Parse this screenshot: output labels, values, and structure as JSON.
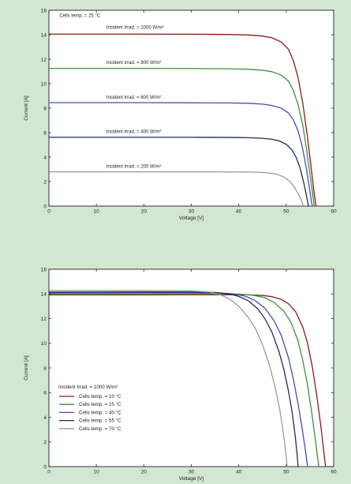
{
  "colors": {
    "background": "#d3e6d2",
    "plot_area": "#ffffff",
    "dark_red": "#8b1a1a",
    "green": "#3f8f3f",
    "blue": "#4a4ab8",
    "dark_navy": "#1e2a5c",
    "gray": "#9a9a9a"
  },
  "chart_data": [
    {
      "type": "line",
      "title": "",
      "xlabel": "Voltage  [V]",
      "ylabel": "Current        [A]",
      "xlim": [
        0,
        60
      ],
      "ylim": [
        0,
        16
      ],
      "xticks": [
        0,
        10,
        20,
        30,
        40,
        50,
        60
      ],
      "yticks": [
        0,
        2,
        4,
        6,
        8,
        10,
        12,
        14,
        16
      ],
      "grid": false,
      "annotations": [
        {
          "text": "Cells temp. = 25 °C",
          "x": 2.2,
          "y": 15.45
        }
      ],
      "series": [
        {
          "name": "Incident Irrad. = 1000 W/m²",
          "color": "#8b1a1a",
          "label_pos": [
            12.1,
            14.5
          ],
          "points": [
            [
              0,
              14.05
            ],
            [
              10,
              14.05
            ],
            [
              20,
              14.05
            ],
            [
              30,
              14.04
            ],
            [
              38,
              14.02
            ],
            [
              42,
              13.98
            ],
            [
              45,
              13.9
            ],
            [
              47,
              13.75
            ],
            [
              49,
              13.4
            ],
            [
              50.5,
              12.8
            ],
            [
              51.5,
              11.9
            ],
            [
              52.5,
              10.5
            ],
            [
              53.5,
              8.4
            ],
            [
              54.5,
              5.6
            ],
            [
              55.3,
              3.0
            ],
            [
              55.9,
              1.0
            ],
            [
              56.3,
              0
            ]
          ]
        },
        {
          "name": "Incident Irrad. = 800 W/m²",
          "color": "#3f8f3f",
          "label_pos": [
            12.1,
            11.6
          ],
          "points": [
            [
              0,
              11.25
            ],
            [
              10,
              11.25
            ],
            [
              20,
              11.25
            ],
            [
              30,
              11.24
            ],
            [
              38,
              11.22
            ],
            [
              42,
              11.18
            ],
            [
              45,
              11.1
            ],
            [
              47,
              10.98
            ],
            [
              49,
              10.7
            ],
            [
              50.5,
              10.2
            ],
            [
              51.5,
              9.45
            ],
            [
              52.5,
              8.3
            ],
            [
              53.5,
              6.6
            ],
            [
              54.3,
              4.6
            ],
            [
              55,
              2.6
            ],
            [
              55.6,
              0.9
            ],
            [
              55.9,
              0
            ]
          ]
        },
        {
          "name": "Incident Irrad. = 600 W/m²",
          "color": "#4a4ab8",
          "label_pos": [
            12.1,
            8.78
          ],
          "points": [
            [
              0,
              8.45
            ],
            [
              10,
              8.45
            ],
            [
              20,
              8.45
            ],
            [
              30,
              8.44
            ],
            [
              38,
              8.43
            ],
            [
              42,
              8.4
            ],
            [
              45,
              8.33
            ],
            [
              47,
              8.22
            ],
            [
              49,
              8.0
            ],
            [
              50.5,
              7.6
            ],
            [
              51.5,
              7.05
            ],
            [
              52.5,
              6.15
            ],
            [
              53.3,
              5.0
            ],
            [
              54.1,
              3.4
            ],
            [
              54.8,
              1.7
            ],
            [
              55.3,
              0.4
            ],
            [
              55.5,
              0
            ]
          ]
        },
        {
          "name": "Incident Irrad. = 400 W/m²",
          "color": "#1e2a5c",
          "label_pos": [
            12.1,
            5.98
          ],
          "points": [
            [
              0,
              5.62
            ],
            [
              10,
              5.62
            ],
            [
              20,
              5.62
            ],
            [
              30,
              5.62
            ],
            [
              38,
              5.61
            ],
            [
              42,
              5.59
            ],
            [
              45,
              5.54
            ],
            [
              47,
              5.46
            ],
            [
              48.5,
              5.33
            ],
            [
              50,
              5.05
            ],
            [
              51.2,
              4.6
            ],
            [
              52.2,
              3.9
            ],
            [
              53,
              3.0
            ],
            [
              53.7,
              1.9
            ],
            [
              54.3,
              0.8
            ],
            [
              54.7,
              0
            ]
          ]
        },
        {
          "name": "Incident Irrad. = 200 W/m²",
          "color": "#9a9a9a",
          "label_pos": [
            12.1,
            3.14
          ],
          "points": [
            [
              0,
              2.8
            ],
            [
              10,
              2.8
            ],
            [
              20,
              2.8
            ],
            [
              30,
              2.8
            ],
            [
              38,
              2.79
            ],
            [
              42,
              2.78
            ],
            [
              44.5,
              2.76
            ],
            [
              46.5,
              2.7
            ],
            [
              48,
              2.6
            ],
            [
              49.5,
              2.38
            ],
            [
              50.8,
              2.0
            ],
            [
              51.8,
              1.5
            ],
            [
              52.7,
              0.9
            ],
            [
              53.3,
              0.35
            ],
            [
              53.6,
              0
            ]
          ]
        }
      ]
    },
    {
      "type": "line",
      "title": "",
      "xlabel": "Voltage  [V]",
      "ylabel": "Current        [A]",
      "xlim": [
        0,
        60
      ],
      "ylim": [
        0,
        16
      ],
      "xticks": [
        0,
        10,
        20,
        30,
        40,
        50,
        60
      ],
      "yticks": [
        0,
        2,
        4,
        6,
        8,
        10,
        12,
        14,
        16
      ],
      "grid": false,
      "legend": {
        "title": "Incident Irrad. = 1000 W/m²",
        "position": "lower-left"
      },
      "series": [
        {
          "name": "Cells temp. = 10 °C",
          "color": "#8b1a1a",
          "points": [
            [
              0,
              13.92
            ],
            [
              10,
              13.92
            ],
            [
              20,
              13.92
            ],
            [
              30,
              13.93
            ],
            [
              38,
              13.93
            ],
            [
              42,
              13.93
            ],
            [
              45,
              13.88
            ],
            [
              47,
              13.78
            ],
            [
              49,
              13.55
            ],
            [
              50.5,
              13.2
            ],
            [
              52,
              12.55
            ],
            [
              53.5,
              11.3
            ],
            [
              54.5,
              10.0
            ],
            [
              55.5,
              8.1
            ],
            [
              56.5,
              5.6
            ],
            [
              57.3,
              3.3
            ],
            [
              57.9,
              1.3
            ],
            [
              58.3,
              0
            ]
          ]
        },
        {
          "name": "Cells temp. = 25 °C",
          "color": "#3f8f3f",
          "points": [
            [
              0,
              14.0
            ],
            [
              10,
              14.0
            ],
            [
              20,
              14.0
            ],
            [
              30,
              14.02
            ],
            [
              36,
              14.02
            ],
            [
              40,
              13.98
            ],
            [
              43,
              13.9
            ],
            [
              45.5,
              13.7
            ],
            [
              47.5,
              13.3
            ],
            [
              49.5,
              12.6
            ],
            [
              51,
              11.7
            ],
            [
              52.5,
              10.2
            ],
            [
              53.5,
              8.6
            ],
            [
              54.5,
              6.6
            ],
            [
              55.3,
              4.6
            ],
            [
              56,
              2.6
            ],
            [
              56.6,
              0.8
            ],
            [
              56.9,
              0
            ]
          ]
        },
        {
          "name": "Cells temp. = 40 °C",
          "color": "#4a4ab8",
          "points": [
            [
              0,
              14.08
            ],
            [
              10,
              14.08
            ],
            [
              20,
              14.1
            ],
            [
              30,
              14.1
            ],
            [
              36,
              14.08
            ],
            [
              39,
              14.0
            ],
            [
              41.5,
              13.8
            ],
            [
              43.5,
              13.45
            ],
            [
              45.5,
              12.85
            ],
            [
              47.5,
              11.8
            ],
            [
              49,
              10.6
            ],
            [
              50.5,
              8.8
            ],
            [
              51.5,
              7.1
            ],
            [
              52.5,
              5.1
            ],
            [
              53.4,
              3.0
            ],
            [
              54.1,
              1.2
            ],
            [
              54.5,
              0
            ]
          ]
        },
        {
          "name": "Cells temp. = 55 °C",
          "color": "#1e2a5c",
          "points": [
            [
              0,
              14.15
            ],
            [
              10,
              14.16
            ],
            [
              20,
              14.17
            ],
            [
              30,
              14.16
            ],
            [
              35,
              14.12
            ],
            [
              38,
              14.0
            ],
            [
              40,
              13.8
            ],
            [
              42,
              13.45
            ],
            [
              44,
              12.8
            ],
            [
              45.5,
              12.0
            ],
            [
              47,
              10.9
            ],
            [
              48.5,
              9.3
            ],
            [
              49.5,
              7.9
            ],
            [
              50.5,
              6.1
            ],
            [
              51.3,
              4.3
            ],
            [
              51.9,
              2.5
            ],
            [
              52.3,
              1.0
            ],
            [
              52.5,
              0
            ]
          ]
        },
        {
          "name": "Cells temp. = 70 °C",
          "color": "#9a9a9a",
          "points": [
            [
              0,
              14.28
            ],
            [
              10,
              14.28
            ],
            [
              20,
              14.28
            ],
            [
              30,
              14.25
            ],
            [
              34,
              14.15
            ],
            [
              36,
              13.95
            ],
            [
              38,
              13.6
            ],
            [
              40,
              13.0
            ],
            [
              42,
              12.1
            ],
            [
              43.5,
              11.2
            ],
            [
              45,
              9.9
            ],
            [
              46.5,
              8.2
            ],
            [
              47.7,
              6.4
            ],
            [
              48.7,
              4.5
            ],
            [
              49.4,
              2.7
            ],
            [
              49.9,
              1.2
            ],
            [
              50.2,
              0
            ]
          ]
        }
      ]
    }
  ]
}
